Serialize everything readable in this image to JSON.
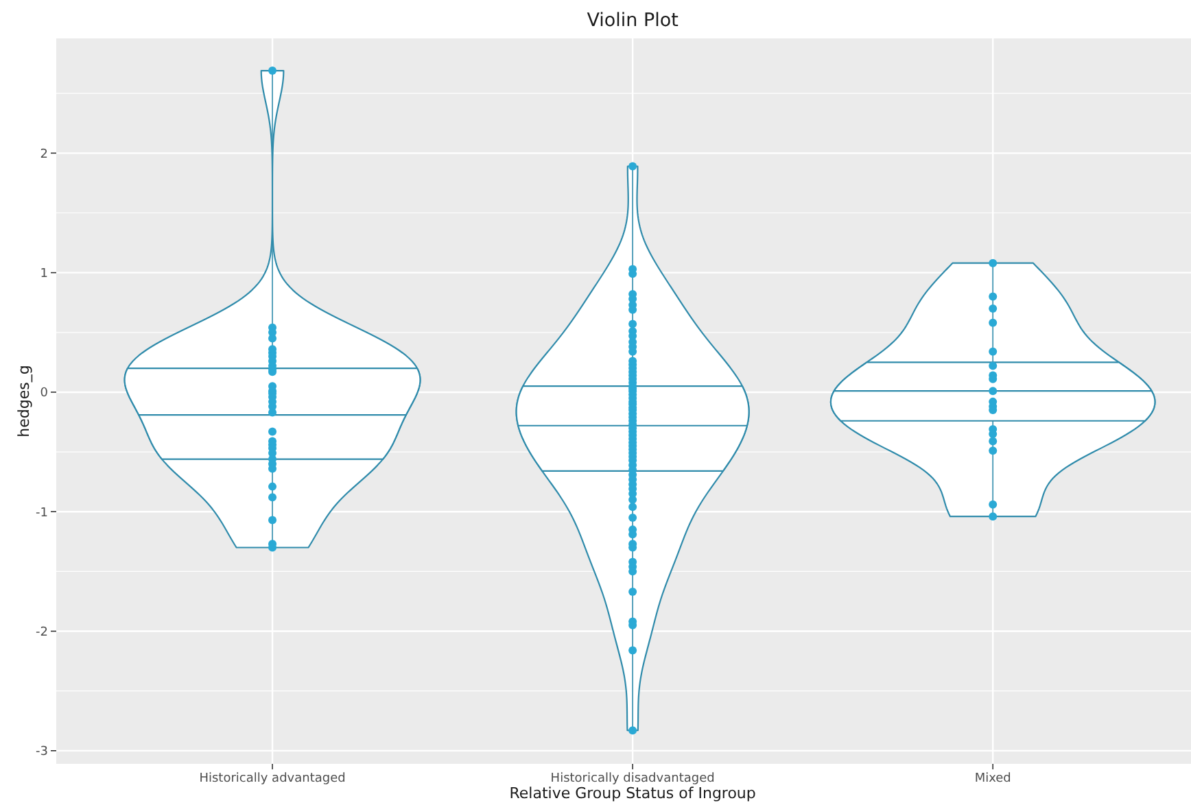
{
  "chart_data": {
    "type": "box",
    "title": "Violin Plot",
    "xlabel": "Relative Group Status of Ingroup",
    "ylabel": "hedges_g",
    "categories": [
      "Historically advantaged",
      "Historically disadvantaged",
      "Mixed"
    ],
    "ylim": [
      -3.11,
      2.96
    ],
    "yticks": [
      -3,
      {
        "value": -2.5,
        "label": null
      },
      -2,
      {
        "value": -1.5,
        "label": null
      },
      -1,
      {
        "value": -0.5,
        "label": null
      },
      0,
      {
        "value": 0.5,
        "label": null
      },
      1,
      {
        "value": 1.5,
        "label": null
      },
      2,
      {
        "value": 2.5,
        "label": null
      }
    ],
    "grid": true,
    "marker": "circle",
    "series": [
      {
        "color": "#2f8bab",
        "boxes": [
          {
            "low": -1.3,
            "q1": -0.56,
            "median": -0.19,
            "q3": 0.2,
            "high": 2.69
          },
          {
            "low": -2.83,
            "q1": -0.66,
            "median": -0.28,
            "q3": 0.05,
            "high": 1.89
          },
          {
            "low": -1.04,
            "q1": -0.24,
            "median": 0.01,
            "q3": 0.25,
            "high": 1.08
          }
        ]
      },
      {
        "type": "scatter",
        "color": "#2aa9d5",
        "x": [
          "Historically advantaged",
          "Historically advantaged",
          "Historically advantaged",
          "Historically advantaged",
          "Historically advantaged",
          "Historically advantaged",
          "Historically advantaged",
          "Historically advantaged",
          "Historically advantaged",
          "Historically advantaged",
          "Historically advantaged",
          "Historically advantaged",
          "Historically advantaged",
          "Historically advantaged",
          "Historically advantaged",
          "Historically advantaged",
          "Historically advantaged",
          "Historically advantaged",
          "Historically advantaged",
          "Historically advantaged",
          "Historically advantaged",
          "Historically advantaged",
          "Historically advantaged",
          "Historically advantaged",
          "Historically advantaged",
          "Historically advantaged",
          "Historically advantaged",
          "Historically advantaged",
          "Historically advantaged",
          "Historically advantaged",
          "Historically advantaged",
          "Historically disadvantaged",
          "Historically disadvantaged",
          "Historically disadvantaged",
          "Historically disadvantaged",
          "Historically disadvantaged",
          "Historically disadvantaged",
          "Historically disadvantaged",
          "Historically disadvantaged",
          "Historically disadvantaged",
          "Historically disadvantaged",
          "Historically disadvantaged",
          "Historically disadvantaged",
          "Historically disadvantaged",
          "Historically disadvantaged",
          "Historically disadvantaged",
          "Historically disadvantaged",
          "Historically disadvantaged",
          "Historically disadvantaged",
          "Historically disadvantaged",
          "Historically disadvantaged",
          "Historically disadvantaged",
          "Historically disadvantaged",
          "Historically disadvantaged",
          "Historically disadvantaged",
          "Historically disadvantaged",
          "Historically disadvantaged",
          "Historically disadvantaged",
          "Historically disadvantaged",
          "Historically disadvantaged",
          "Historically disadvantaged",
          "Historically disadvantaged",
          "Historically disadvantaged",
          "Historically disadvantaged",
          "Historically disadvantaged",
          "Historically disadvantaged",
          "Historically disadvantaged",
          "Historically disadvantaged",
          "Historically disadvantaged",
          "Historically disadvantaged",
          "Historically disadvantaged",
          "Historically disadvantaged",
          "Historically disadvantaged",
          "Historically disadvantaged",
          "Historically disadvantaged",
          "Historically disadvantaged",
          "Historically disadvantaged",
          "Historically disadvantaged",
          "Historically disadvantaged",
          "Historically disadvantaged",
          "Historically disadvantaged",
          "Historically disadvantaged",
          "Historically disadvantaged",
          "Historically disadvantaged",
          "Historically disadvantaged",
          "Historically disadvantaged",
          "Historically disadvantaged",
          "Historically disadvantaged",
          "Historically disadvantaged",
          "Historically disadvantaged",
          "Historically disadvantaged",
          "Historically disadvantaged",
          "Historically disadvantaged",
          "Historically disadvantaged",
          "Historically disadvantaged",
          "Historically disadvantaged",
          "Mixed",
          "Mixed",
          "Mixed",
          "Mixed",
          "Mixed",
          "Mixed",
          "Mixed",
          "Mixed",
          "Mixed",
          "Mixed",
          "Mixed",
          "Mixed",
          "Mixed",
          "Mixed",
          "Mixed",
          "Mixed",
          "Mixed",
          "Mixed"
        ],
        "values": [
          2.69,
          0.54,
          0.5,
          0.45,
          0.36,
          0.33,
          0.3,
          0.26,
          0.22,
          0.19,
          0.17,
          0.05,
          0.01,
          -0.01,
          -0.04,
          -0.08,
          -0.12,
          -0.17,
          -0.33,
          -0.41,
          -0.44,
          -0.47,
          -0.51,
          -0.56,
          -0.6,
          -0.64,
          -0.79,
          -0.88,
          -1.07,
          -1.27,
          -1.3,
          1.89,
          1.03,
          0.99,
          0.82,
          0.78,
          0.73,
          0.69,
          0.57,
          0.51,
          0.47,
          0.42,
          0.38,
          0.34,
          0.26,
          0.23,
          0.2,
          0.17,
          0.14,
          0.11,
          0.08,
          0.05,
          0.03,
          0.01,
          -0.02,
          -0.05,
          -0.08,
          -0.1,
          -0.13,
          -0.15,
          -0.18,
          -0.21,
          -0.24,
          -0.27,
          -0.3,
          -0.33,
          -0.36,
          -0.39,
          -0.42,
          -0.45,
          -0.48,
          -0.51,
          -0.54,
          -0.57,
          -0.61,
          -0.65,
          -0.69,
          -0.73,
          -0.77,
          -0.81,
          -0.85,
          -0.9,
          -0.96,
          -1.05,
          -1.15,
          -1.19,
          -1.27,
          -1.3,
          -1.42,
          -1.46,
          -1.5,
          -1.67,
          -1.92,
          -1.95,
          -2.16,
          -2.83,
          1.08,
          0.8,
          0.7,
          0.58,
          0.34,
          0.22,
          0.14,
          0.11,
          0.01,
          -0.08,
          -0.12,
          -0.15,
          -0.31,
          -0.35,
          -0.41,
          -0.49,
          -0.94,
          -1.04
        ]
      }
    ]
  }
}
